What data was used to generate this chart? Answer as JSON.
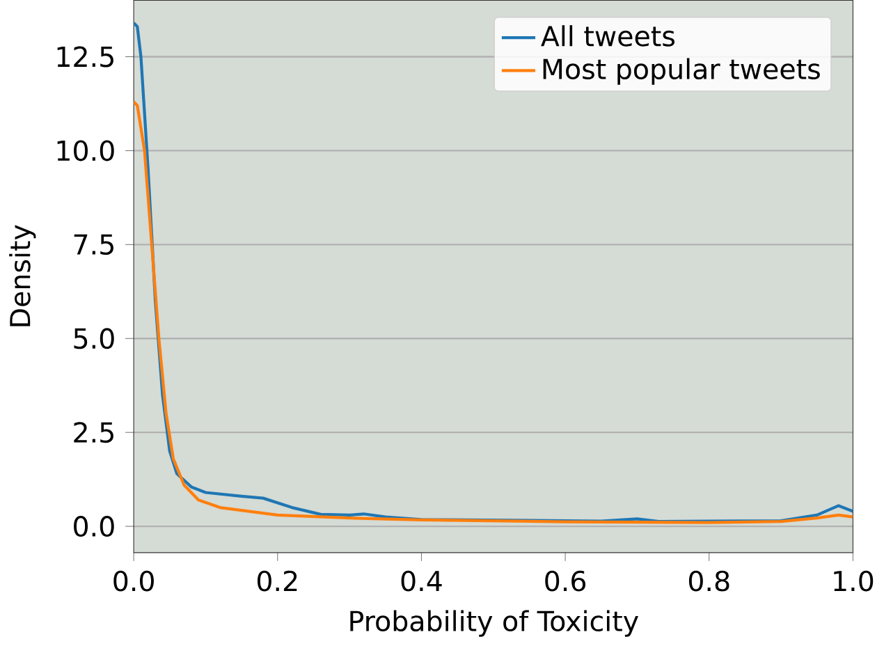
{
  "chart_data": {
    "type": "line",
    "xlabel": "Probability of Toxicity",
    "ylabel": "Density",
    "xlim": [
      0,
      1
    ],
    "ylim": [
      -0.7,
      14
    ],
    "xticks": [
      {
        "value": 0,
        "label": "0.0"
      },
      {
        "value": 0.2,
        "label": "0.2"
      },
      {
        "value": 0.4,
        "label": "0.4"
      },
      {
        "value": 0.6,
        "label": "0.6"
      },
      {
        "value": 0.8,
        "label": "0.8"
      },
      {
        "value": 1,
        "label": "1.0"
      }
    ],
    "yticks": [
      {
        "value": 0,
        "label": "0.0"
      },
      {
        "value": 2.5,
        "label": "2.5"
      },
      {
        "value": 5,
        "label": "5.0"
      },
      {
        "value": 7.5,
        "label": "7.5"
      },
      {
        "value": 10,
        "label": "10.0"
      },
      {
        "value": 12.5,
        "label": "12.5"
      }
    ],
    "grid": "y",
    "legend": "top right",
    "line_style": "solid",
    "series": [
      {
        "name": "All tweets",
        "color": "#1f77b4",
        "x": [
          0,
          0.005,
          0.01,
          0.02,
          0.03,
          0.04,
          0.05,
          0.06,
          0.08,
          0.1,
          0.15,
          0.18,
          0.22,
          0.26,
          0.3,
          0.32,
          0.35,
          0.4,
          0.5,
          0.6,
          0.65,
          0.7,
          0.73,
          0.8,
          0.9,
          0.95,
          0.98,
          1.0
        ],
        "values": [
          13.4,
          13.3,
          12.5,
          9.5,
          6,
          3.5,
          2,
          1.4,
          1.05,
          0.9,
          0.8,
          0.75,
          0.5,
          0.32,
          0.3,
          0.33,
          0.25,
          0.18,
          null,
          null,
          0.14,
          0.2,
          0.13,
          null,
          0.15,
          0.3,
          0.55,
          0.4
        ]
      },
      {
        "name": "Most popular tweets",
        "color": "#ff7f0e",
        "x": [
          0,
          0.005,
          0.015,
          0.025,
          0.035,
          0.045,
          0.055,
          0.07,
          0.09,
          0.12,
          0.2,
          0.3,
          0.4,
          0.6,
          0.8,
          0.9,
          0.95,
          0.98,
          1.0
        ],
        "values": [
          11.3,
          11.2,
          10,
          7.5,
          5,
          3,
          1.8,
          1.1,
          0.7,
          0.5,
          0.3,
          0.22,
          0.17,
          0.12,
          0.1,
          0.13,
          0.22,
          0.3,
          0.25
        ]
      }
    ]
  }
}
